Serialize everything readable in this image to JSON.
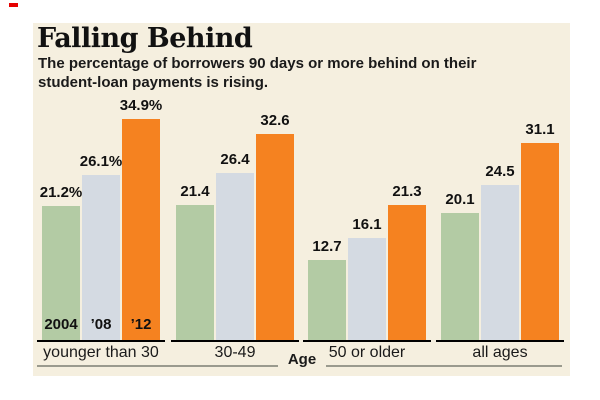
{
  "window": {
    "background": "#ffffff"
  },
  "panel": {
    "background": "#f5efdf"
  },
  "crop_mark": {
    "color": "#e60000"
  },
  "header": {
    "title": "Falling Behind",
    "subtitle_line1": "The percentage of borrowers 90 days or more behind on their",
    "subtitle_line2": "student-loan payments is rising."
  },
  "chart_data": {
    "type": "bar",
    "title": "Falling Behind",
    "subtitle": "The percentage of borrowers 90 days or more behind on their student-loan payments is rising.",
    "categories": [
      "younger than 30",
      "30-49",
      "50 or older",
      "all ages"
    ],
    "xlabel": "Age",
    "unit": "%",
    "series": [
      {
        "name": "2004",
        "color": "#b3cba4",
        "values": [
          21.2,
          21.4,
          12.7,
          20.1
        ]
      },
      {
        "name": "’08",
        "color": "#d4dae2",
        "values": [
          26.1,
          26.4,
          16.1,
          24.5
        ]
      },
      {
        "name": "’12",
        "color": "#f58220",
        "values": [
          34.9,
          32.6,
          21.3,
          31.1
        ]
      }
    ],
    "value_labels": [
      [
        "21.2%",
        "26.1%",
        "34.9%"
      ],
      [
        "21.4",
        "26.4",
        "32.6"
      ],
      [
        "12.7",
        "16.1",
        "21.3"
      ],
      [
        "20.1",
        "24.5",
        "31.1"
      ]
    ],
    "ylim": [
      0,
      36
    ],
    "grid": false,
    "legend": "year labels shown inside bottom of first bar group",
    "baseline_color": "#000000",
    "axis_line_color": "#9a9a8e",
    "text_color": "#111111"
  }
}
